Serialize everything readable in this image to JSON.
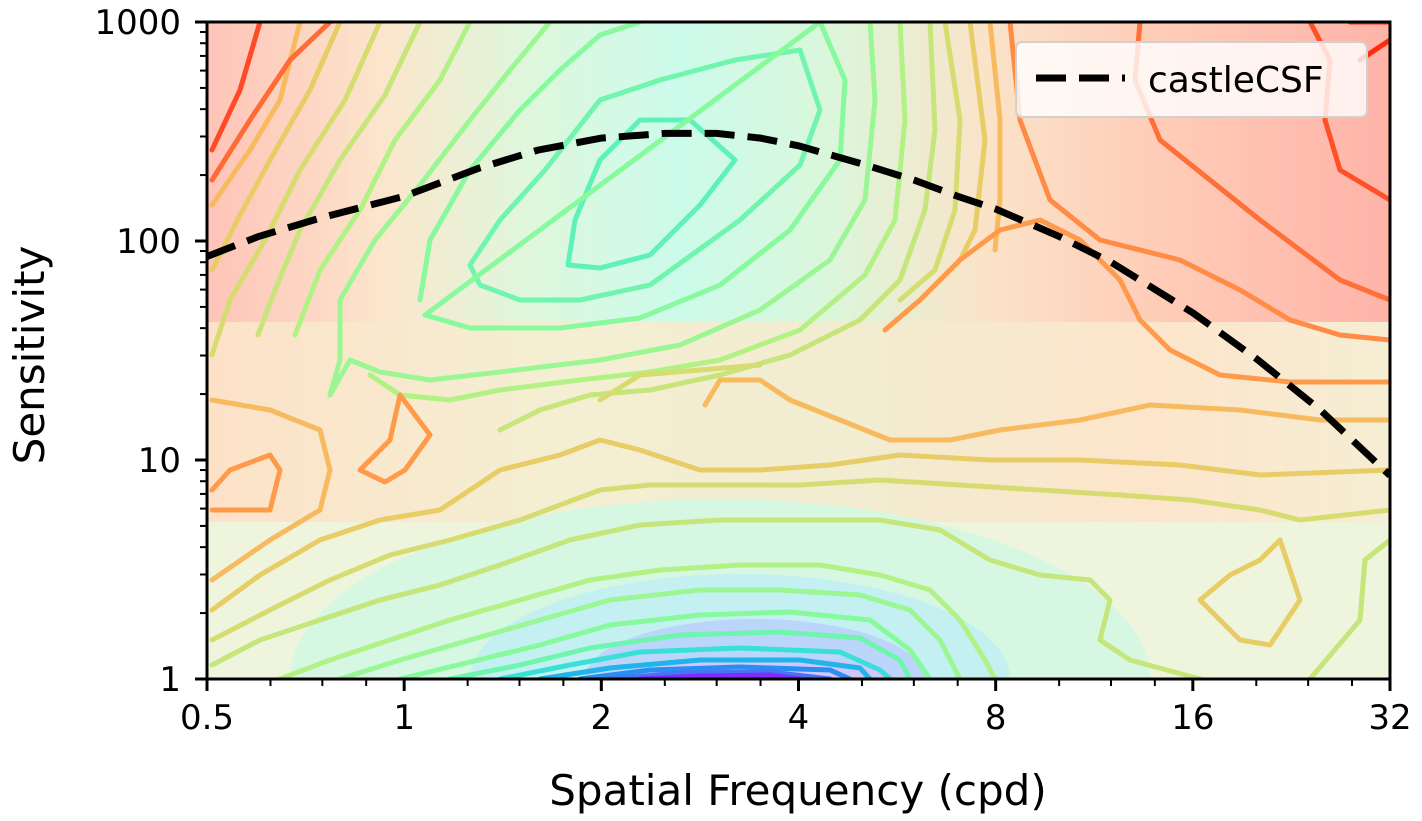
{
  "chart_data": {
    "type": "line",
    "xlabel": "Spatial Frequency (cpd)",
    "ylabel": "Sensitivity",
    "xscale": "log2",
    "yscale": "log10",
    "xlim": [
      0.5,
      32
    ],
    "ylim": [
      1,
      1000
    ],
    "xticks": [
      0.5,
      1,
      2,
      4,
      8,
      16,
      32
    ],
    "xtick_labels": [
      "0.5",
      "1",
      "2",
      "4",
      "8",
      "16",
      "32"
    ],
    "yticks": [
      1,
      10,
      100,
      1000
    ],
    "ytick_labels": [
      "1",
      "10",
      "100",
      "1000"
    ],
    "legend_position": "top-right",
    "background": "filled contour map (rainbow colormap: violet/blue at low sensitivity and mid frequency, green/yellow in the middle, orange/red at the edges)",
    "series": [
      {
        "name": "castleCSF",
        "style": "dashed",
        "color": "#000000",
        "x": [
          0.5,
          0.6,
          0.75,
          1,
          1.3,
          1.6,
          2,
          2.5,
          3,
          3.5,
          4,
          5,
          6,
          7,
          8,
          10,
          12,
          16,
          20,
          25,
          32
        ],
        "y": [
          85,
          105,
          128,
          160,
          215,
          260,
          295,
          310,
          310,
          295,
          272,
          225,
          190,
          160,
          140,
          105,
          80,
          47,
          29,
          17,
          8.5
        ]
      }
    ],
    "contour_colors": [
      "#7f2cff",
      "#4a72f5",
      "#1fb5ea",
      "#39e0d8",
      "#5ef2b8",
      "#86fa9c",
      "#b2f285",
      "#d7dc70",
      "#f7ba5e",
      "#ff8b45",
      "#ff5028",
      "#ff1f10"
    ]
  }
}
